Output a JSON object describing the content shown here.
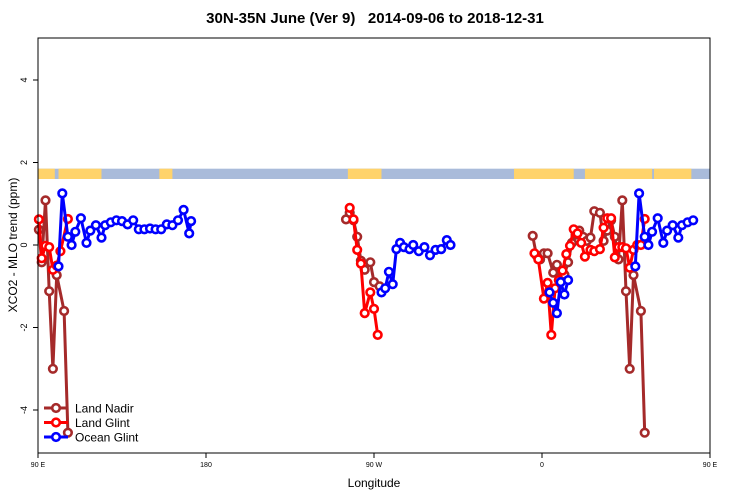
{
  "chart_data": {
    "type": "line",
    "title": "30N-35N June (Ver 9)   2014-09-06 to 2018-12-31",
    "xlabel": "Longitude",
    "ylabel": "XCO2 - MLO trend (ppm)",
    "xlim": [
      90,
      450
    ],
    "ylim": [
      -5,
      5
    ],
    "xticks": [
      {
        "value": 90,
        "label": "90 E"
      },
      {
        "value": 180,
        "label": "180"
      },
      {
        "value": 270,
        "label": "90 W"
      },
      {
        "value": 360,
        "label": "0"
      },
      {
        "value": 450,
        "label": "90 E"
      }
    ],
    "yticks": [
      -4,
      -2,
      0,
      2,
      4
    ],
    "grid": false,
    "legend_position": "bottom-left",
    "land_mask": {
      "y_range": [
        1.6,
        1.85
      ],
      "land_color": "#FFD36B",
      "ocean_color": "#A9BBDA",
      "land_segments": [
        [
          90,
          99
        ],
        [
          101,
          124
        ],
        [
          155,
          162
        ],
        [
          256,
          274
        ],
        [
          345,
          377
        ],
        [
          383,
          419
        ],
        [
          420,
          440
        ]
      ]
    },
    "series": [
      {
        "name": "Land Nadir",
        "color": "#A52A2A",
        "segments": [
          [
            [
              90.5,
              0.37
            ],
            [
              92,
              -0.42
            ],
            [
              94,
              1.08
            ],
            [
              96,
              -1.12
            ],
            [
              98,
              -3.0
            ],
            [
              100,
              -0.73
            ],
            [
              104,
              -1.6
            ],
            [
              106,
              -4.55
            ]
          ],
          [
            [
              255,
              0.62
            ],
            [
              257,
              0.78
            ],
            [
              259,
              0.6
            ],
            [
              261,
              0.2
            ],
            [
              263,
              -0.38
            ],
            [
              265,
              -0.6
            ],
            [
              268,
              -0.42
            ],
            [
              270,
              -0.9
            ],
            [
              273,
              -1.0
            ]
          ],
          [
            [
              355,
              0.22
            ],
            [
              357,
              -0.25
            ],
            [
              359,
              -0.35
            ],
            [
              361,
              -0.2
            ],
            [
              363,
              -0.2
            ],
            [
              366,
              -0.67
            ],
            [
              368,
              -0.48
            ],
            [
              370,
              -0.8
            ],
            [
              372,
              -0.72
            ],
            [
              374,
              -0.42
            ],
            [
              376,
              0.05
            ],
            [
              378,
              0.25
            ],
            [
              380,
              0.35
            ],
            [
              382,
              0.2
            ],
            [
              384,
              0.1
            ],
            [
              386,
              0.18
            ],
            [
              388,
              0.82
            ],
            [
              391,
              0.78
            ],
            [
              393,
              0.1
            ],
            [
              395,
              0.35
            ],
            [
              397,
              0.6
            ],
            [
              399,
              0.2
            ],
            [
              401,
              -0.35
            ],
            [
              403,
              1.08
            ],
            [
              405,
              -1.12
            ],
            [
              407,
              -3.0
            ],
            [
              409,
              -0.73
            ],
            [
              413,
              -1.6
            ],
            [
              415,
              -4.55
            ]
          ]
        ]
      },
      {
        "name": "Land Glint",
        "color": "#FF0000",
        "segments": [
          [
            [
              90.5,
              0.62
            ],
            [
              92,
              -0.32
            ],
            [
              94,
              -0.02
            ],
            [
              96,
              -0.05
            ],
            [
              98,
              -0.6
            ],
            [
              100,
              -0.5
            ],
            [
              102,
              -0.15
            ],
            [
              106,
              0.63
            ]
          ],
          [
            [
              257,
              0.9
            ],
            [
              259,
              0.62
            ],
            [
              261,
              -0.12
            ],
            [
              263,
              -0.45
            ],
            [
              265,
              -1.65
            ],
            [
              268,
              -1.15
            ],
            [
              270,
              -1.55
            ],
            [
              272,
              -2.18
            ]
          ],
          [
            [
              356,
              -0.2
            ],
            [
              358,
              -0.35
            ],
            [
              361,
              -1.3
            ],
            [
              363,
              -0.92
            ],
            [
              365,
              -2.18
            ],
            [
              367,
              -1.05
            ],
            [
              369,
              -0.85
            ],
            [
              371,
              -0.62
            ],
            [
              373,
              -0.22
            ],
            [
              375,
              -0.02
            ],
            [
              377,
              0.38
            ],
            [
              379,
              0.28
            ],
            [
              381,
              0.05
            ],
            [
              383,
              -0.28
            ],
            [
              386,
              -0.12
            ],
            [
              388,
              -0.15
            ],
            [
              391,
              -0.1
            ],
            [
              393,
              0.42
            ],
            [
              395,
              0.65
            ],
            [
              397,
              0.65
            ],
            [
              399,
              -0.3
            ],
            [
              401,
              -0.05
            ],
            [
              403,
              -0.05
            ],
            [
              405,
              -0.08
            ],
            [
              407,
              -0.55
            ],
            [
              409,
              -0.12
            ],
            [
              411,
              0.0
            ],
            [
              413,
              0.0
            ],
            [
              415,
              0.63
            ]
          ]
        ]
      },
      {
        "name": "Ocean Glint",
        "color": "#0000FF",
        "segments": [
          [
            [
              101,
              -0.52
            ],
            [
              103,
              1.25
            ],
            [
              106,
              0.2
            ],
            [
              108,
              0.0
            ],
            [
              110,
              0.32
            ],
            [
              113,
              0.65
            ],
            [
              116,
              0.05
            ],
            [
              118,
              0.35
            ],
            [
              121,
              0.48
            ],
            [
              124,
              0.18
            ],
            [
              126,
              0.48
            ],
            [
              129,
              0.55
            ],
            [
              132,
              0.6
            ],
            [
              135,
              0.58
            ],
            [
              138,
              0.5
            ],
            [
              141,
              0.6
            ],
            [
              144,
              0.38
            ],
            [
              147,
              0.38
            ],
            [
              150,
              0.4
            ],
            [
              153,
              0.38
            ],
            [
              156,
              0.38
            ],
            [
              159,
              0.5
            ],
            [
              162,
              0.48
            ],
            [
              165,
              0.6
            ],
            [
              168,
              0.85
            ],
            [
              171,
              0.28
            ],
            [
              172,
              0.58
            ]
          ],
          [
            [
              274,
              -1.15
            ],
            [
              276,
              -1.05
            ],
            [
              278,
              -0.65
            ],
            [
              280,
              -0.95
            ],
            [
              282,
              -0.1
            ],
            [
              284,
              0.05
            ],
            [
              286,
              -0.05
            ],
            [
              289,
              -0.1
            ],
            [
              291,
              0.0
            ],
            [
              294,
              -0.15
            ],
            [
              297,
              -0.05
            ],
            [
              300,
              -0.25
            ],
            [
              303,
              -0.12
            ],
            [
              306,
              -0.1
            ],
            [
              309,
              0.12
            ],
            [
              311,
              0.0
            ]
          ],
          [
            [
              364,
              -1.15
            ],
            [
              366,
              -1.4
            ],
            [
              368,
              -1.65
            ],
            [
              370,
              -0.9
            ],
            [
              372,
              -1.2
            ],
            [
              374,
              -0.85
            ]
          ],
          [
            [
              410,
              -0.52
            ],
            [
              412,
              1.25
            ],
            [
              415,
              0.2
            ],
            [
              417,
              0.0
            ],
            [
              419,
              0.32
            ],
            [
              422,
              0.65
            ],
            [
              425,
              0.05
            ],
            [
              427,
              0.35
            ],
            [
              430,
              0.48
            ],
            [
              433,
              0.18
            ],
            [
              435,
              0.48
            ],
            [
              438,
              0.55
            ],
            [
              441,
              0.6
            ]
          ]
        ]
      }
    ]
  }
}
